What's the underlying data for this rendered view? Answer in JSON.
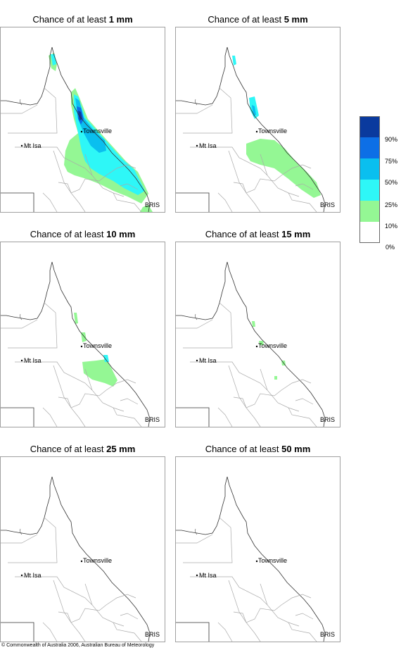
{
  "panels": [
    {
      "title_prefix": "Chance of at least ",
      "amount": "1 mm"
    },
    {
      "title_prefix": "Chance of at least ",
      "amount": "5 mm"
    },
    {
      "title_prefix": "Chance of at least ",
      "amount": "10 mm"
    },
    {
      "title_prefix": "Chance of at least ",
      "amount": "15 mm"
    },
    {
      "title_prefix": "Chance of at least ",
      "amount": "25 mm"
    },
    {
      "title_prefix": "Chance of at least ",
      "amount": "50 mm"
    }
  ],
  "places": {
    "townsville": "Townsville",
    "mt_isa": "Mt Isa",
    "brisbane": "BRIS"
  },
  "legend": {
    "labels": [
      "90%",
      "75%",
      "50%",
      "25%",
      "10%",
      "0%"
    ],
    "colors": [
      "#0a3a9e",
      "#0d6fe6",
      "#0abfef",
      "#2ef7f7",
      "#94f794",
      "#ffffff"
    ]
  },
  "copyright": "© Commonwealth of Australia 2006, Australian Bureau of Meteorology"
}
